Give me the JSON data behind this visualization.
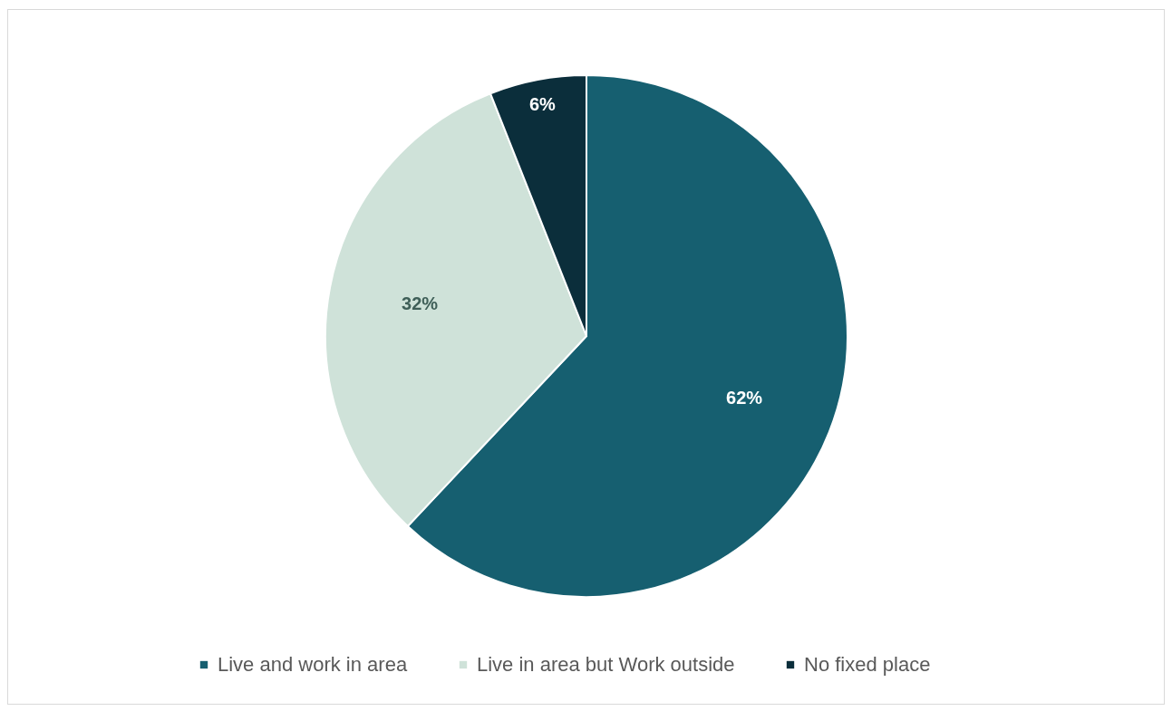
{
  "chart_data": {
    "type": "pie",
    "categories": [
      "Live and work in area",
      "Live in area but Work outside",
      "No fixed place"
    ],
    "values": [
      62,
      32,
      6
    ],
    "colors": [
      "#165f70",
      "#cfe2d9",
      "#0b2e3b"
    ],
    "value_labels": [
      "62%",
      "32%",
      "6%"
    ],
    "legend": "bottom"
  }
}
